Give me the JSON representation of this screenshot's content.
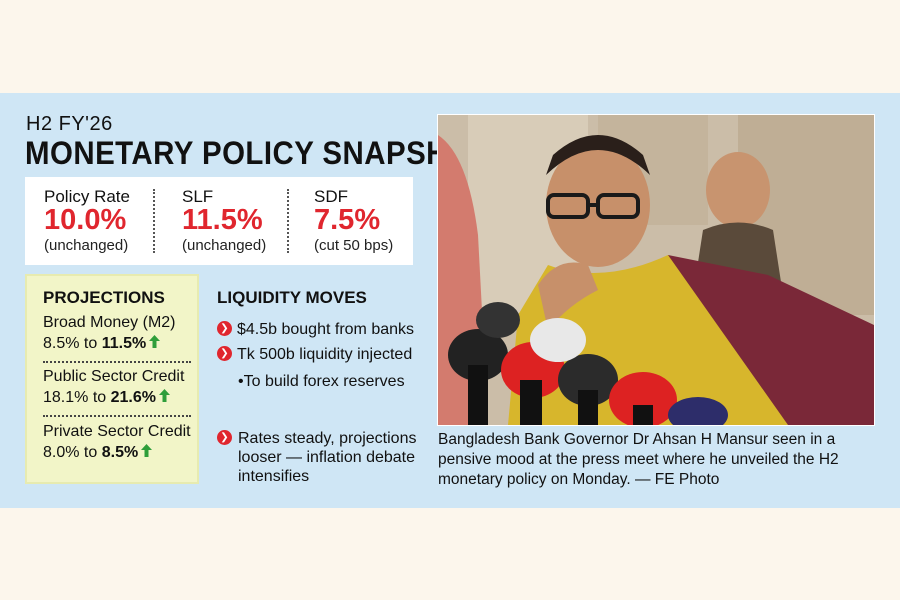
{
  "kicker": "H2 FY'26",
  "headline": "MONETARY POLICY SNAPSHOT",
  "rates": [
    {
      "label": "Policy Rate",
      "value": "10.0%",
      "note": "(unchanged)"
    },
    {
      "label": "SLF",
      "value": "11.5%",
      "note": "(unchanged)"
    },
    {
      "label": "SDF",
      "value": "7.5%",
      "note": "(cut 50 bps)"
    }
  ],
  "projections": {
    "title": "PROJECTIONS",
    "items": [
      {
        "name": "Broad Money (M2)",
        "from": "8.5% to",
        "to": "11.5%"
      },
      {
        "name": "Public Sector Credit",
        "from": "18.1% to",
        "to": "21.6%"
      },
      {
        "name": "Private Sector Credit",
        "from": "8.0% to",
        "to": "8.5%"
      }
    ],
    "arrow_color": "#2f9e3a"
  },
  "liquidity": {
    "title": "LIQUIDITY MOVES",
    "bullets": [
      "$4.5b bought from banks",
      "Tk 500b liquidity injected"
    ],
    "sub_bullet": "•To build forex reserves",
    "note": "Rates steady, projections looser — inflation debate intensifies"
  },
  "caption": "Bangladesh Bank Governor Dr Ahsan H Mansur seen in a pensive mood at the press meet where he unveiled the H2 monetary policy on Monday. — FE Photo",
  "colors": {
    "accent": "#e0262e",
    "panel": "#cfe6f5",
    "projections_bg": "#f2f5c8",
    "page_bg": "#fcf6ec"
  }
}
